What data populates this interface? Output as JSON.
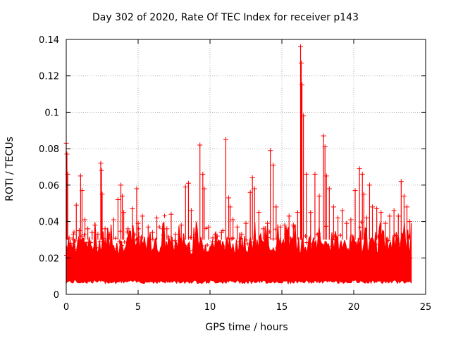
{
  "chart_data": {
    "type": "scatter",
    "title": "Day 302 of 2020, Rate Of TEC Index for receiver p143",
    "xlabel": "GPS time / hours",
    "ylabel": "ROTI / TECUs",
    "xlim": [
      0,
      25
    ],
    "ylim": [
      0,
      0.14
    ],
    "xticks": [
      0,
      5,
      10,
      15,
      20,
      25
    ],
    "xtick_labels": [
      "0",
      "5",
      "10",
      "15",
      "20",
      "25"
    ],
    "yticks": [
      0,
      0.02,
      0.04,
      0.06,
      0.08,
      0.1,
      0.12,
      0.14
    ],
    "ytick_labels": [
      "0",
      "0.02",
      "0.04",
      "0.06",
      "0.08",
      "0.1",
      "0.12",
      "0.14"
    ],
    "grid": true,
    "marker": "+",
    "color": "#ff0000",
    "series": [
      {
        "name": "ROTI",
        "x": [
          0.0,
          0.05,
          0.1,
          0.2,
          0.3,
          0.5,
          0.7,
          0.9,
          1.0,
          1.1,
          1.3,
          1.5,
          1.8,
          2.0,
          2.2,
          2.4,
          2.45,
          2.5,
          2.7,
          3.0,
          3.3,
          3.6,
          3.8,
          3.9,
          4.0,
          4.3,
          4.6,
          4.9,
          5.0,
          5.3,
          5.7,
          6.0,
          6.3,
          6.7,
          7.0,
          7.3,
          7.6,
          8.0,
          8.3,
          8.5,
          8.7,
          9.0,
          9.3,
          9.5,
          9.6,
          9.9,
          10.2,
          10.5,
          10.8,
          11.1,
          11.3,
          11.4,
          11.6,
          11.9,
          12.2,
          12.5,
          12.8,
          12.95,
          13.1,
          13.4,
          13.7,
          14.0,
          14.2,
          14.4,
          14.6,
          14.9,
          15.2,
          15.5,
          15.8,
          16.1,
          16.3,
          16.35,
          16.4,
          16.5,
          16.7,
          17.0,
          17.3,
          17.6,
          17.9,
          18.0,
          18.1,
          18.3,
          18.6,
          18.9,
          19.2,
          19.5,
          19.8,
          20.1,
          20.4,
          20.6,
          20.7,
          20.9,
          21.1,
          21.3,
          21.6,
          21.9,
          22.2,
          22.5,
          22.8,
          23.1,
          23.3,
          23.5,
          23.7,
          23.9
        ],
        "y": [
          0.083,
          0.077,
          0.066,
          0.031,
          0.028,
          0.033,
          0.049,
          0.035,
          0.065,
          0.057,
          0.041,
          0.036,
          0.034,
          0.038,
          0.033,
          0.072,
          0.068,
          0.055,
          0.036,
          0.033,
          0.041,
          0.052,
          0.06,
          0.054,
          0.045,
          0.036,
          0.047,
          0.058,
          0.039,
          0.043,
          0.037,
          0.034,
          0.042,
          0.036,
          0.036,
          0.044,
          0.033,
          0.038,
          0.059,
          0.061,
          0.046,
          0.033,
          0.082,
          0.066,
          0.058,
          0.037,
          0.031,
          0.032,
          0.034,
          0.085,
          0.053,
          0.048,
          0.041,
          0.037,
          0.033,
          0.039,
          0.056,
          0.064,
          0.058,
          0.045,
          0.036,
          0.039,
          0.079,
          0.071,
          0.048,
          0.037,
          0.038,
          0.043,
          0.038,
          0.045,
          0.136,
          0.127,
          0.115,
          0.098,
          0.066,
          0.045,
          0.066,
          0.054,
          0.087,
          0.081,
          0.065,
          0.058,
          0.048,
          0.042,
          0.046,
          0.039,
          0.041,
          0.057,
          0.069,
          0.066,
          0.055,
          0.042,
          0.06,
          0.048,
          0.047,
          0.045,
          0.039,
          0.043,
          0.046,
          0.043,
          0.062,
          0.054,
          0.048,
          0.04
        ]
      }
    ]
  }
}
